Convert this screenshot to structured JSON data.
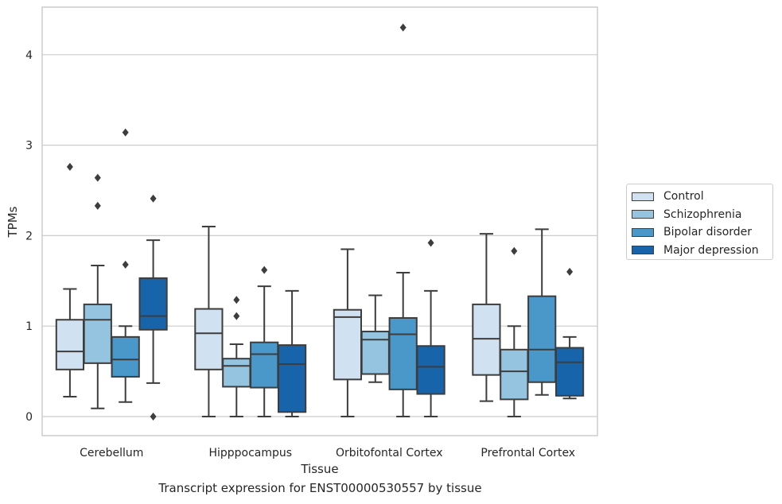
{
  "caption": "Transcript expression for ENST00000530557 by tissue",
  "legend": {
    "items": [
      {
        "label": "Control",
        "color": "#d0e1f2"
      },
      {
        "label": "Schizophrenia",
        "color": "#94c4df"
      },
      {
        "label": "Bipolar disorder",
        "color": "#4a98c9"
      },
      {
        "label": "Major depression",
        "color": "#1764ab"
      }
    ]
  },
  "chart_data": {
    "type": "box",
    "xlabel": "Tissue",
    "ylabel": "TPMs",
    "ylim": [
      -0.2,
      4.55
    ],
    "yticks": [
      0,
      1,
      2,
      3,
      4
    ],
    "grid": "horizontal",
    "legend_position": "right",
    "categories": [
      "Cerebellum",
      "Hipppocampus",
      "Orbitofontal Cortex",
      "Prefrontal Cortex"
    ],
    "series": [
      {
        "name": "Control",
        "color": "#d0e1f2",
        "boxes": [
          {
            "whislo": 0.22,
            "q1": 0.52,
            "med": 0.72,
            "q3": 1.07,
            "whishi": 1.41,
            "fliers": [
              2.76
            ]
          },
          {
            "whislo": 0.0,
            "q1": 0.52,
            "med": 0.92,
            "q3": 1.19,
            "whishi": 2.1,
            "fliers": []
          },
          {
            "whislo": 0.0,
            "q1": 0.41,
            "med": 1.1,
            "q3": 1.18,
            "whishi": 1.85,
            "fliers": []
          },
          {
            "whislo": 0.17,
            "q1": 0.46,
            "med": 0.86,
            "q3": 1.24,
            "whishi": 2.02,
            "fliers": []
          }
        ]
      },
      {
        "name": "Schizophrenia",
        "color": "#94c4df",
        "boxes": [
          {
            "whislo": 0.09,
            "q1": 0.59,
            "med": 1.07,
            "q3": 1.24,
            "whishi": 1.67,
            "fliers": [
              2.64,
              2.33
            ]
          },
          {
            "whislo": 0.0,
            "q1": 0.33,
            "med": 0.56,
            "q3": 0.64,
            "whishi": 0.8,
            "fliers": [
              1.29,
              1.11
            ]
          },
          {
            "whislo": 0.38,
            "q1": 0.47,
            "med": 0.85,
            "q3": 0.94,
            "whishi": 1.34,
            "fliers": []
          },
          {
            "whislo": 0.0,
            "q1": 0.19,
            "med": 0.5,
            "q3": 0.74,
            "whishi": 1.0,
            "fliers": [
              1.83
            ]
          }
        ]
      },
      {
        "name": "Bipolar disorder",
        "color": "#4a98c9",
        "boxes": [
          {
            "whislo": 0.16,
            "q1": 0.44,
            "med": 0.63,
            "q3": 0.88,
            "whishi": 1.0,
            "fliers": [
              3.14,
              1.68
            ]
          },
          {
            "whislo": 0.0,
            "q1": 0.32,
            "med": 0.69,
            "q3": 0.82,
            "whishi": 1.44,
            "fliers": [
              1.62
            ]
          },
          {
            "whislo": 0.0,
            "q1": 0.3,
            "med": 0.91,
            "q3": 1.09,
            "whishi": 1.59,
            "fliers": [
              4.3
            ]
          },
          {
            "whislo": 0.24,
            "q1": 0.38,
            "med": 0.74,
            "q3": 1.33,
            "whishi": 2.07,
            "fliers": []
          }
        ]
      },
      {
        "name": "Major depression",
        "color": "#1764ab",
        "boxes": [
          {
            "whislo": 0.37,
            "q1": 0.96,
            "med": 1.11,
            "q3": 1.53,
            "whishi": 1.95,
            "fliers": [
              2.41,
              0.0
            ]
          },
          {
            "whislo": 0.0,
            "q1": 0.05,
            "med": 0.58,
            "q3": 0.79,
            "whishi": 1.39,
            "fliers": []
          },
          {
            "whislo": 0.0,
            "q1": 0.25,
            "med": 0.55,
            "q3": 0.78,
            "whishi": 1.39,
            "fliers": [
              1.92
            ]
          },
          {
            "whislo": 0.2,
            "q1": 0.23,
            "med": 0.6,
            "q3": 0.76,
            "whishi": 0.88,
            "fliers": [
              1.6
            ]
          }
        ]
      }
    ]
  }
}
